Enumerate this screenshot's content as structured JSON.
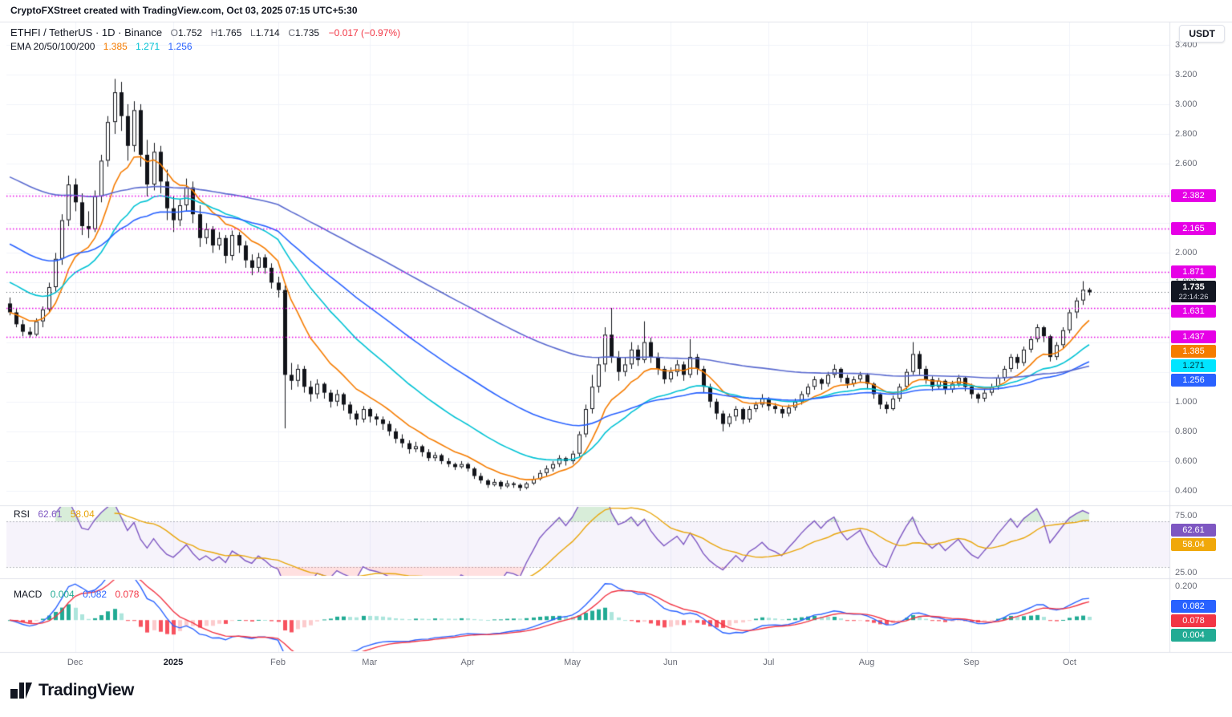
{
  "topbar": {
    "text": "CryptoFXStreet created with TradingView.com, Oct 03, 2025 07:15 UTC+5:30"
  },
  "toolbar": {
    "currency_label": "USDT"
  },
  "legend": {
    "symbol": "ETHFI / TetherUS · 1D · Binance",
    "ohlc": [
      {
        "k": "O",
        "v": "1.752"
      },
      {
        "k": "H",
        "v": "1.765"
      },
      {
        "k": "L",
        "v": "1.714"
      },
      {
        "k": "C",
        "v": "1.735"
      }
    ],
    "change": "−0.017 (−0.97%)",
    "change_color": "#f23645"
  },
  "ema_legend": {
    "label": "EMA 20/50/100/200",
    "v1": "1.385",
    "v2": "1.271",
    "v3": "1.256"
  },
  "rsi_legend": {
    "label": "RSI"
  },
  "macd_legend": {
    "label": "MACD"
  },
  "footer": {
    "brand": "TradingView"
  },
  "chart_data": {
    "type": "candlestick",
    "title": "ETHFI/TetherUS 1D Binance daily candles with EMA 20/50/100/200, RSI and MACD",
    "price_range": [
      3.35,
      0.33
    ],
    "price_ticks": [
      "3.400",
      "3.200",
      "3.000",
      "2.800",
      "2.600",
      "2.000",
      "1.800",
      "1.000",
      "0.800",
      "0.600",
      "0.400"
    ],
    "levels": [
      2.382,
      2.165,
      1.871,
      1.631,
      1.437
    ],
    "level_color": "#e600e6",
    "last": {
      "price": "1.735",
      "countdown": "22:14:26",
      "bg": "#131722"
    },
    "x_ticks": [
      {
        "label": "Dec",
        "i": 10
      },
      {
        "label": "2025",
        "i": 25
      },
      {
        "label": "Feb",
        "i": 41
      },
      {
        "label": "Mar",
        "i": 55
      },
      {
        "label": "Apr",
        "i": 70
      },
      {
        "label": "May",
        "i": 86
      },
      {
        "label": "Jun",
        "i": 101
      },
      {
        "label": "Jul",
        "i": 116
      },
      {
        "label": "Aug",
        "i": 131
      },
      {
        "label": "Sep",
        "i": 147
      },
      {
        "label": "Oct",
        "i": 162
      }
    ],
    "ema_lines": [
      {
        "period": 10,
        "seed": 1.6,
        "color": "#f57c00",
        "badge": {
          "text": "1.385",
          "bg": "#f57c00",
          "fg": "#ffffff"
        }
      },
      {
        "period": 24,
        "seed": 1.82,
        "color": "#00c2d4",
        "badge": {
          "text": "1.271",
          "bg": "#00e5ff",
          "fg": "#00303a"
        }
      },
      {
        "period": 46,
        "seed": 2.08,
        "color": "#2962ff",
        "badge": {
          "text": "1.256",
          "bg": "#2962ff",
          "fg": "#ffffff"
        }
      },
      {
        "period": 96,
        "seed": 2.53,
        "color": "#5a6acf"
      }
    ],
    "candles": [
      [
        1.66,
        1.7,
        1.58,
        1.6
      ],
      [
        1.6,
        1.63,
        1.5,
        1.52
      ],
      [
        1.52,
        1.55,
        1.44,
        1.47
      ],
      [
        1.47,
        1.5,
        1.43,
        1.45
      ],
      [
        1.45,
        1.56,
        1.44,
        1.54
      ],
      [
        1.54,
        1.64,
        1.5,
        1.62
      ],
      [
        1.62,
        1.8,
        1.6,
        1.77
      ],
      [
        1.77,
        2.0,
        1.74,
        1.96
      ],
      [
        1.96,
        2.26,
        1.92,
        2.22
      ],
      [
        2.22,
        2.52,
        2.18,
        2.46
      ],
      [
        2.46,
        2.5,
        2.28,
        2.34
      ],
      [
        2.34,
        2.4,
        2.12,
        2.18
      ],
      [
        2.18,
        2.28,
        2.1,
        2.16
      ],
      [
        2.16,
        2.42,
        2.14,
        2.38
      ],
      [
        2.38,
        2.66,
        2.34,
        2.62
      ],
      [
        2.62,
        2.92,
        2.58,
        2.88
      ],
      [
        2.88,
        3.17,
        2.8,
        3.08
      ],
      [
        3.08,
        3.15,
        2.82,
        2.92
      ],
      [
        2.92,
        3.0,
        2.62,
        2.72
      ],
      [
        2.72,
        3.02,
        2.68,
        2.96
      ],
      [
        2.96,
        3.0,
        2.58,
        2.66
      ],
      [
        2.66,
        2.76,
        2.38,
        2.46
      ],
      [
        2.46,
        2.74,
        2.42,
        2.68
      ],
      [
        2.68,
        2.72,
        2.4,
        2.48
      ],
      [
        2.48,
        2.56,
        2.22,
        2.3
      ],
      [
        2.3,
        2.38,
        2.14,
        2.22
      ],
      [
        2.22,
        2.36,
        2.18,
        2.32
      ],
      [
        2.32,
        2.5,
        2.28,
        2.44
      ],
      [
        2.44,
        2.48,
        2.2,
        2.26
      ],
      [
        2.26,
        2.32,
        2.04,
        2.1
      ],
      [
        2.1,
        2.2,
        2.06,
        2.16
      ],
      [
        2.16,
        2.18,
        2.0,
        2.05
      ],
      [
        2.05,
        2.14,
        2.02,
        2.1
      ],
      [
        2.1,
        2.12,
        1.93,
        1.98
      ],
      [
        1.98,
        2.15,
        1.95,
        2.12
      ],
      [
        2.12,
        2.14,
        2.0,
        2.05
      ],
      [
        2.05,
        2.08,
        1.9,
        1.95
      ],
      [
        1.95,
        1.99,
        1.85,
        1.9
      ],
      [
        1.9,
        2.0,
        1.87,
        1.97
      ],
      [
        1.97,
        1.99,
        1.86,
        1.9
      ],
      [
        1.9,
        1.93,
        1.76,
        1.8
      ],
      [
        1.8,
        1.84,
        1.7,
        1.75
      ],
      [
        1.75,
        1.78,
        0.82,
        1.18
      ],
      [
        1.18,
        1.26,
        1.08,
        1.14
      ],
      [
        1.14,
        1.25,
        1.1,
        1.22
      ],
      [
        1.22,
        1.24,
        1.06,
        1.1
      ],
      [
        1.1,
        1.14,
        1.0,
        1.05
      ],
      [
        1.05,
        1.15,
        1.02,
        1.12
      ],
      [
        1.12,
        1.13,
        1.02,
        1.06
      ],
      [
        1.06,
        1.08,
        0.96,
        1.0
      ],
      [
        1.0,
        1.08,
        0.97,
        1.05
      ],
      [
        1.05,
        1.06,
        0.94,
        0.98
      ],
      [
        0.98,
        1.0,
        0.88,
        0.92
      ],
      [
        0.92,
        0.94,
        0.84,
        0.88
      ],
      [
        0.88,
        0.97,
        0.86,
        0.95
      ],
      [
        0.95,
        0.96,
        0.86,
        0.9
      ],
      [
        0.9,
        0.92,
        0.84,
        0.88
      ],
      [
        0.88,
        0.9,
        0.81,
        0.85
      ],
      [
        0.85,
        0.87,
        0.77,
        0.8
      ],
      [
        0.8,
        0.82,
        0.72,
        0.75
      ],
      [
        0.75,
        0.78,
        0.69,
        0.72
      ],
      [
        0.72,
        0.74,
        0.65,
        0.68
      ],
      [
        0.68,
        0.73,
        0.66,
        0.7
      ],
      [
        0.7,
        0.71,
        0.63,
        0.66
      ],
      [
        0.66,
        0.68,
        0.6,
        0.62
      ],
      [
        0.62,
        0.66,
        0.6,
        0.64
      ],
      [
        0.64,
        0.65,
        0.58,
        0.6
      ],
      [
        0.6,
        0.62,
        0.56,
        0.58
      ],
      [
        0.58,
        0.59,
        0.54,
        0.56
      ],
      [
        0.56,
        0.6,
        0.55,
        0.58
      ],
      [
        0.58,
        0.59,
        0.53,
        0.55
      ],
      [
        0.55,
        0.56,
        0.48,
        0.5
      ],
      [
        0.5,
        0.52,
        0.45,
        0.47
      ],
      [
        0.47,
        0.48,
        0.42,
        0.44
      ],
      [
        0.44,
        0.48,
        0.43,
        0.46
      ],
      [
        0.46,
        0.47,
        0.41,
        0.43
      ],
      [
        0.43,
        0.47,
        0.42,
        0.45
      ],
      [
        0.45,
        0.46,
        0.42,
        0.44
      ],
      [
        0.44,
        0.45,
        0.4,
        0.42
      ],
      [
        0.42,
        0.46,
        0.41,
        0.45
      ],
      [
        0.45,
        0.5,
        0.44,
        0.48
      ],
      [
        0.48,
        0.54,
        0.47,
        0.52
      ],
      [
        0.52,
        0.57,
        0.5,
        0.55
      ],
      [
        0.55,
        0.6,
        0.53,
        0.58
      ],
      [
        0.58,
        0.64,
        0.56,
        0.62
      ],
      [
        0.62,
        0.63,
        0.57,
        0.6
      ],
      [
        0.6,
        0.67,
        0.58,
        0.65
      ],
      [
        0.65,
        0.8,
        0.63,
        0.78
      ],
      [
        0.78,
        0.98,
        0.76,
        0.95
      ],
      [
        0.95,
        1.18,
        0.92,
        1.1
      ],
      [
        1.1,
        1.3,
        1.06,
        1.25
      ],
      [
        1.25,
        1.5,
        1.2,
        1.45
      ],
      [
        1.45,
        1.63,
        1.26,
        1.3
      ],
      [
        1.3,
        1.34,
        1.14,
        1.2
      ],
      [
        1.2,
        1.3,
        1.17,
        1.25
      ],
      [
        1.25,
        1.4,
        1.22,
        1.35
      ],
      [
        1.35,
        1.38,
        1.24,
        1.28
      ],
      [
        1.28,
        1.54,
        1.26,
        1.4
      ],
      [
        1.4,
        1.43,
        1.26,
        1.3
      ],
      [
        1.3,
        1.33,
        1.18,
        1.22
      ],
      [
        1.22,
        1.24,
        1.12,
        1.15
      ],
      [
        1.15,
        1.23,
        1.13,
        1.2
      ],
      [
        1.2,
        1.28,
        1.17,
        1.25
      ],
      [
        1.25,
        1.27,
        1.14,
        1.18
      ],
      [
        1.18,
        1.42,
        1.16,
        1.3
      ],
      [
        1.3,
        1.32,
        1.18,
        1.22
      ],
      [
        1.22,
        1.24,
        1.06,
        1.1
      ],
      [
        1.1,
        1.12,
        0.96,
        1.0
      ],
      [
        1.0,
        1.02,
        0.88,
        0.92
      ],
      [
        0.92,
        0.94,
        0.8,
        0.85
      ],
      [
        0.85,
        0.92,
        0.83,
        0.9
      ],
      [
        0.9,
        0.97,
        0.87,
        0.95
      ],
      [
        0.95,
        0.96,
        0.85,
        0.88
      ],
      [
        0.88,
        0.97,
        0.86,
        0.95
      ],
      [
        0.95,
        1.0,
        0.93,
        0.98
      ],
      [
        0.98,
        1.05,
        0.96,
        1.02
      ],
      [
        1.02,
        1.03,
        0.94,
        0.97
      ],
      [
        0.97,
        0.99,
        0.92,
        0.95
      ],
      [
        0.95,
        0.97,
        0.89,
        0.92
      ],
      [
        0.92,
        0.98,
        0.9,
        0.96
      ],
      [
        0.96,
        1.02,
        0.94,
        1.0
      ],
      [
        1.0,
        1.07,
        0.98,
        1.05
      ],
      [
        1.05,
        1.12,
        1.03,
        1.1
      ],
      [
        1.1,
        1.17,
        1.08,
        1.15
      ],
      [
        1.15,
        1.16,
        1.08,
        1.12
      ],
      [
        1.12,
        1.2,
        1.1,
        1.18
      ],
      [
        1.18,
        1.25,
        1.16,
        1.22
      ],
      [
        1.22,
        1.23,
        1.13,
        1.16
      ],
      [
        1.16,
        1.18,
        1.09,
        1.12
      ],
      [
        1.12,
        1.17,
        1.1,
        1.15
      ],
      [
        1.15,
        1.2,
        1.13,
        1.18
      ],
      [
        1.18,
        1.19,
        1.09,
        1.12
      ],
      [
        1.12,
        1.13,
        1.02,
        1.05
      ],
      [
        1.05,
        1.06,
        0.95,
        0.98
      ],
      [
        0.98,
        1.0,
        0.92,
        0.95
      ],
      [
        0.95,
        1.04,
        0.94,
        1.02
      ],
      [
        1.02,
        1.12,
        1.0,
        1.1
      ],
      [
        1.1,
        1.22,
        1.08,
        1.2
      ],
      [
        1.2,
        1.4,
        1.18,
        1.32
      ],
      [
        1.32,
        1.34,
        1.18,
        1.22
      ],
      [
        1.22,
        1.24,
        1.12,
        1.15
      ],
      [
        1.15,
        1.17,
        1.07,
        1.1
      ],
      [
        1.1,
        1.16,
        1.08,
        1.14
      ],
      [
        1.14,
        1.15,
        1.05,
        1.08
      ],
      [
        1.08,
        1.14,
        1.06,
        1.12
      ],
      [
        1.12,
        1.18,
        1.1,
        1.16
      ],
      [
        1.16,
        1.17,
        1.07,
        1.1
      ],
      [
        1.1,
        1.12,
        1.02,
        1.05
      ],
      [
        1.05,
        1.06,
        0.99,
        1.02
      ],
      [
        1.02,
        1.08,
        1.0,
        1.06
      ],
      [
        1.06,
        1.12,
        1.04,
        1.1
      ],
      [
        1.1,
        1.18,
        1.08,
        1.16
      ],
      [
        1.16,
        1.24,
        1.14,
        1.22
      ],
      [
        1.22,
        1.32,
        1.2,
        1.3
      ],
      [
        1.3,
        1.32,
        1.22,
        1.26
      ],
      [
        1.26,
        1.37,
        1.24,
        1.35
      ],
      [
        1.35,
        1.44,
        1.33,
        1.42
      ],
      [
        1.42,
        1.52,
        1.4,
        1.5
      ],
      [
        1.5,
        1.51,
        1.4,
        1.44
      ],
      [
        1.44,
        1.45,
        1.27,
        1.3
      ],
      [
        1.3,
        1.4,
        1.28,
        1.38
      ],
      [
        1.38,
        1.5,
        1.36,
        1.48
      ],
      [
        1.48,
        1.62,
        1.46,
        1.6
      ],
      [
        1.6,
        1.7,
        1.56,
        1.68
      ],
      [
        1.68,
        1.81,
        1.65,
        1.752
      ],
      [
        1.752,
        1.765,
        1.714,
        1.735
      ]
    ],
    "rsi": {
      "label": "RSI",
      "period": 7,
      "ma_period": 10,
      "value": "62.61",
      "ma_value": "58.04",
      "line_color": "#7e57c2",
      "ma_color": "#e8a50a",
      "value_badge_bg": "#7e57c2",
      "ma_badge_bg": "#f0a80a",
      "ticks": [
        "75.00",
        "25.00"
      ],
      "tick_values": [
        75,
        25
      ],
      "range": [
        80,
        22
      ],
      "band": [
        70,
        30
      ]
    },
    "macd": {
      "label": "MACD",
      "fast": 6,
      "slow": 13,
      "signal_period": 5,
      "hist_value": "0.004",
      "macd_value": "0.082",
      "signal_value": "0.078",
      "macd_color": "#2962ff",
      "signal_color": "#f23645",
      "hist_badge_bg": "#22ab94",
      "hist_colors": [
        "#22ab94",
        "#ace5dc",
        "#fccbcd",
        "#f7525f"
      ],
      "tick": "0.200",
      "tick_value": 0.2,
      "range": [
        0.225,
        -0.185
      ]
    }
  }
}
